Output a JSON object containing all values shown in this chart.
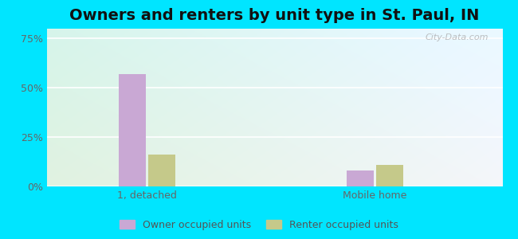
{
  "title": "Owners and renters by unit type in St. Paul, IN",
  "title_fontsize": 14,
  "categories": [
    "1, detached",
    "Mobile home"
  ],
  "owner_values": [
    57,
    8
  ],
  "renter_values": [
    16,
    11
  ],
  "owner_color": "#c9a8d4",
  "renter_color": "#c5c98a",
  "yticks": [
    0,
    25,
    50,
    75
  ],
  "ytick_labels": [
    "0%",
    "25%",
    "50%",
    "75%"
  ],
  "ylim": [
    0,
    80
  ],
  "bar_width": 0.06,
  "group_centers": [
    0.22,
    0.72
  ],
  "bar_gap": 0.005,
  "legend_labels": [
    "Owner occupied units",
    "Renter occupied units"
  ],
  "bg_left": "#d8f0d8",
  "bg_right": "#d0eeee",
  "outer_bg": "#00e5ff",
  "watermark": "City-Data.com"
}
